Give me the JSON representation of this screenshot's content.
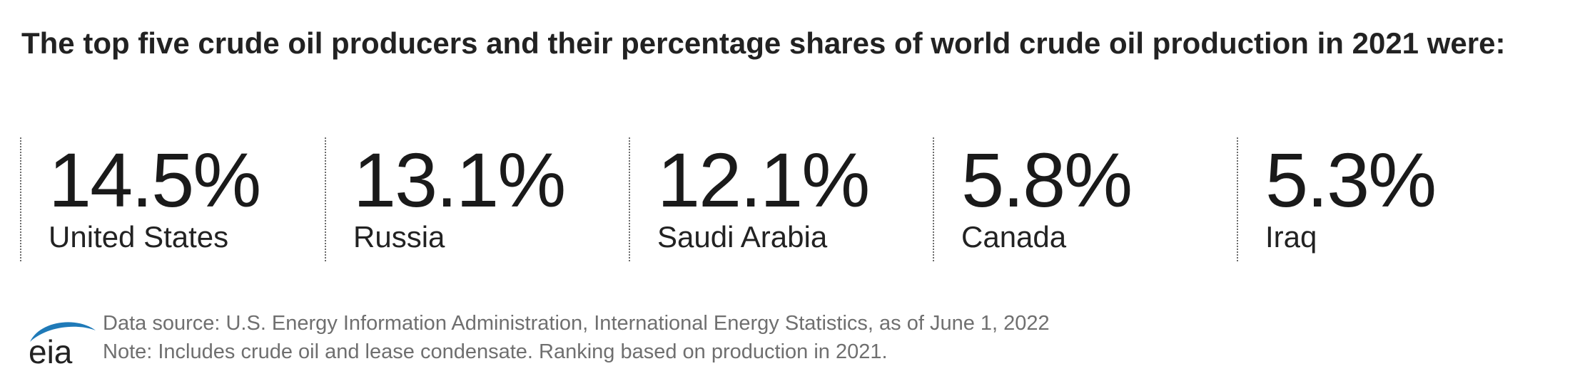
{
  "headline": "The top five crude oil producers and their percentage shares of world crude oil production in 2021 were:",
  "stats": [
    {
      "value": "14.5%",
      "country": "United States"
    },
    {
      "value": "13.1%",
      "country": "Russia"
    },
    {
      "value": "12.1%",
      "country": "Saudi Arabia"
    },
    {
      "value": "5.8%",
      "country": "Canada"
    },
    {
      "value": "5.3%",
      "country": "Iraq"
    }
  ],
  "footer": {
    "logo_text": "eia",
    "data_source": "Data source: U.S. Energy Information Administration, International Energy Statistics, as of June 1, 2022",
    "note": "Note: Includes crude oil and lease condensate. Ranking based on production in 2021."
  },
  "colors": {
    "text": "#222222",
    "muted_text": "#6f6f6f",
    "logo_blue": "#1f7ab8",
    "divider": "#6b6b6b"
  },
  "icons": [
    "eia-logo-icon"
  ]
}
